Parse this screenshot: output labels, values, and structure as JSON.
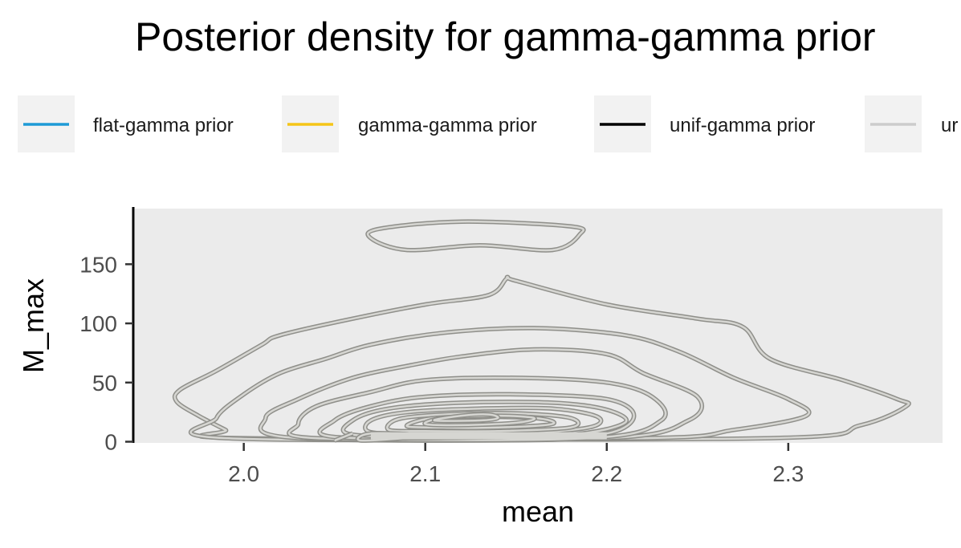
{
  "chart_data": {
    "type": "contour",
    "title": "Posterior density for gamma-gamma prior",
    "xlabel": "mean",
    "ylabel": "M_max",
    "xlim": [
      1.94,
      2.385
    ],
    "ylim": [
      -1,
      197
    ],
    "x_ticks": [
      2.0,
      2.1,
      2.2,
      2.3
    ],
    "x_tick_labels": [
      "2.0",
      "2.1",
      "2.2",
      "2.3"
    ],
    "y_ticks": [
      0,
      50,
      100,
      150
    ],
    "y_tick_labels": [
      "0",
      "50",
      "100",
      "150"
    ],
    "grid": false,
    "legend_position": "top",
    "legend": [
      {
        "name": "flat-gamma prior",
        "color": "#1e9ad6"
      },
      {
        "name": "gamma-gamma prior",
        "color": "#f5c518"
      },
      {
        "name": "unif-gamma prior",
        "color": "#000000"
      },
      {
        "name": "unif-gamma prior (truncated)",
        "label": "ur",
        "color": "#cccccc"
      }
    ],
    "series": [
      {
        "name": "gamma-gamma prior",
        "color": "#b4b4ae",
        "contours": [
          [
            [
              2.0,
              3
            ],
            [
              1.99,
              10
            ],
            [
              1.975,
              22
            ],
            [
              1.963,
              34
            ],
            [
              1.965,
              44
            ],
            [
              1.985,
              60
            ],
            [
              2.01,
              82
            ],
            [
              2.02,
              90
            ],
            [
              2.06,
              104
            ],
            [
              2.1,
              116
            ],
            [
              2.135,
              124
            ],
            [
              2.145,
              138
            ],
            [
              2.15,
              136
            ],
            [
              2.2,
              116
            ],
            [
              2.25,
              104
            ],
            [
              2.275,
              97
            ],
            [
              2.29,
              70
            ],
            [
              2.33,
              52
            ],
            [
              2.36,
              36
            ],
            [
              2.365,
              30
            ],
            [
              2.34,
              14
            ],
            [
              2.29,
              3
            ]
          ],
          [
            [
              2.07,
              172
            ],
            [
              2.075,
              180
            ],
            [
              2.12,
              186
            ],
            [
              2.18,
              182
            ],
            [
              2.185,
              175
            ],
            [
              2.17,
              162
            ],
            [
              2.13,
              166
            ],
            [
              2.09,
              162
            ]
          ],
          [
            [
              1.99,
              3
            ],
            [
              1.985,
              20
            ],
            [
              2.0,
              40
            ],
            [
              2.02,
              58
            ],
            [
              2.045,
              70
            ],
            [
              2.07,
              82
            ],
            [
              2.11,
              92
            ],
            [
              2.16,
              96
            ],
            [
              2.21,
              90
            ],
            [
              2.24,
              76
            ],
            [
              2.27,
              54
            ],
            [
              2.3,
              36
            ],
            [
              2.31,
              22
            ],
            [
              2.27,
              10
            ],
            [
              2.22,
              3
            ]
          ],
          [
            [
              2.03,
              3
            ],
            [
              2.012,
              20
            ],
            [
              2.03,
              36
            ],
            [
              2.06,
              54
            ],
            [
              2.09,
              64
            ],
            [
              2.12,
              72
            ],
            [
              2.16,
              78
            ],
            [
              2.2,
              74
            ],
            [
              2.22,
              58
            ],
            [
              2.25,
              38
            ],
            [
              2.245,
              18
            ],
            [
              2.2,
              3
            ]
          ],
          [
            [
              2.04,
              3
            ],
            [
              2.03,
              15
            ],
            [
              2.04,
              30
            ],
            [
              2.07,
              42
            ],
            [
              2.1,
              52
            ],
            [
              2.15,
              54
            ],
            [
              2.2,
              50
            ],
            [
              2.225,
              38
            ],
            [
              2.23,
              18
            ],
            [
              2.19,
              3
            ]
          ],
          [
            [
              2.05,
              4
            ],
            [
              2.05,
              18
            ],
            [
              2.07,
              30
            ],
            [
              2.1,
              38
            ],
            [
              2.15,
              40
            ],
            [
              2.2,
              36
            ],
            [
              2.215,
              22
            ],
            [
              2.2,
              7
            ],
            [
              2.15,
              4
            ]
          ],
          [
            [
              2.06,
              6
            ],
            [
              2.06,
              18
            ],
            [
              2.08,
              28
            ],
            [
              2.12,
              33
            ],
            [
              2.17,
              33
            ],
            [
              2.2,
              27
            ],
            [
              2.21,
              16
            ],
            [
              2.18,
              6
            ],
            [
              2.12,
              5
            ]
          ],
          [
            [
              2.07,
              8
            ],
            [
              2.07,
              18
            ],
            [
              2.09,
              25
            ],
            [
              2.13,
              28
            ],
            [
              2.17,
              28
            ],
            [
              2.195,
              21
            ],
            [
              2.19,
              12
            ],
            [
              2.15,
              7
            ],
            [
              2.1,
              7
            ]
          ],
          [
            [
              2.08,
              10
            ],
            [
              2.085,
              19
            ],
            [
              2.11,
              23
            ],
            [
              2.15,
              24
            ],
            [
              2.18,
              20
            ],
            [
              2.18,
              12
            ],
            [
              2.14,
              9
            ],
            [
              2.1,
              9
            ]
          ],
          [
            [
              2.09,
              13
            ],
            [
              2.1,
              19
            ],
            [
              2.12,
              21
            ],
            [
              2.16,
              20
            ],
            [
              2.17,
              15
            ],
            [
              2.14,
              12
            ],
            [
              2.11,
              12
            ]
          ],
          [
            [
              2.1,
              15
            ],
            [
              2.11,
              20
            ],
            [
              2.14,
              22
            ],
            [
              2.16,
              20
            ],
            [
              2.15,
              16
            ],
            [
              2.12,
              14
            ]
          ],
          [
            [
              2.105,
              18
            ],
            [
              2.12,
              22
            ],
            [
              2.135,
              23
            ],
            [
              2.14,
              20
            ],
            [
              2.13,
              18
            ]
          ],
          [
            [
              2.065,
              1
            ],
            [
              2.07,
              7
            ],
            [
              2.1,
              5
            ]
          ],
          [
            [
              2.05,
              1
            ],
            [
              2.06,
              7
            ]
          ]
        ]
      }
    ]
  }
}
